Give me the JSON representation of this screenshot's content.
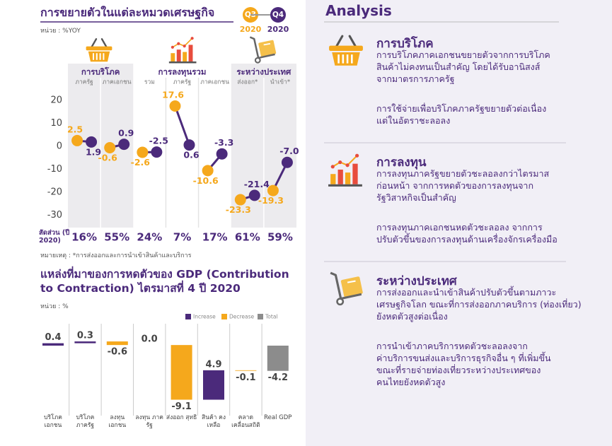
{
  "chart_data": [
    {
      "type": "dot",
      "title": "การขยายตัวในแต่ละหมวดเศรษฐกิจ",
      "unit": "หน่วย : %YOY",
      "groups": [
        {
          "name": "การบริโภค",
          "categories": [
            "ภาครัฐ",
            "ภาคเอกชน"
          ]
        },
        {
          "name": "การลงทุนรวม",
          "categories": [
            "รวม",
            "ภาครัฐ",
            "ภาคเอกชน"
          ]
        },
        {
          "name": "ระหว่างประเทศ",
          "categories": [
            "ส่งออก*",
            "นำเข้า*"
          ]
        }
      ],
      "series": [
        {
          "name": "Q3",
          "year": "2020",
          "color": "#f5a81c",
          "values": [
            2.5,
            -0.6,
            -2.6,
            17.6,
            -10.6,
            -23.3,
            -19.3
          ]
        },
        {
          "name": "Q4",
          "year": "2020",
          "color": "#4b2a7b",
          "values": [
            1.9,
            0.9,
            -2.5,
            0.6,
            -3.3,
            -21.4,
            -7.0
          ],
          "value_labels": [
            "1.9",
            "0.9",
            "-2.5",
            "0.6",
            "-3.3",
            "-21.4",
            "-7.0"
          ]
        }
      ],
      "ylim": [
        -33,
        25
      ],
      "yticks": [
        20,
        10,
        0,
        -10,
        -20,
        -30
      ],
      "share": {
        "label": "สัดส่วน (ปี 2020)",
        "values": [
          16,
          55,
          24,
          7,
          17,
          61,
          59
        ],
        "value_labels": [
          "16%",
          "55%",
          "24%",
          "7%",
          "17%",
          "61%",
          "59%"
        ]
      },
      "note": "หมายเหตุ : *การส่งออกและการนำเข้าสินค้าและบริการ"
    },
    {
      "type": "waterfall",
      "title": "แหล่งที่มาของการหดตัวของ GDP (Contribution to Contraction) ไตรมาสที่ 4 ปี 2020",
      "unit": "หน่วย : %",
      "legend": [
        {
          "name": "Increase",
          "color": "#4b2a7b"
        },
        {
          "name": "Decrease",
          "color": "#f5a81c"
        },
        {
          "name": "Total",
          "color": "#8c8c8c"
        }
      ],
      "categories": [
        "บริโภค เอกชน",
        "บริโภค ภาครัฐ",
        "ลงทุน เอกชน",
        "ลงทุน ภาครัฐ",
        "ส่งออก สุทธิ",
        "สินค้า คงเหลือ",
        "คลาด เคลื่อนสถิติ",
        "Real GDP"
      ],
      "kinds": [
        "Increase",
        "Increase",
        "Decrease",
        "Increase",
        "Decrease",
        "Increase",
        "Decrease",
        "Total"
      ],
      "values": [
        0.4,
        0.3,
        -0.6,
        0.0,
        -9.1,
        4.9,
        -0.1,
        -4.2
      ],
      "value_labels": [
        "0.4",
        "0.3",
        "-0.6",
        "0.0",
        "-9.1",
        "4.9",
        "-0.1",
        "-4.2"
      ]
    }
  ],
  "analysis": {
    "title": "Analysis",
    "sections": [
      {
        "heading": "การบริโภค",
        "paragraphs": [
          [
            "การบริโภคภาคเอกชนขยายตัวจากการบริโภค",
            "สินค้าไม่คงทนเป็นสำคัญ โดยได้รับอานิสงส์",
            "จากมาตรการภาครัฐ"
          ],
          [
            "การใช้จ่ายเพื่อบริโภคภาครัฐขยายตัวต่อเนื่อง",
            "แต่ในอัตราชะลอลง"
          ]
        ]
      },
      {
        "heading": "การลงทุน",
        "paragraphs": [
          [
            "การลงทุนภาครัฐขยายตัวชะลอลงกว่าไตรมาส",
            "ก่อนหน้า จากการหดตัวของการลงทุนจาก",
            "รัฐวิสาหกิจเป็นสำคัญ"
          ],
          [
            "การลงทุนภาคเอกชนหดตัวชะลอลง จากการ",
            "ปรับตัวขึ้นของการลงทุนด้านเครื่องจักรเครื่องมือ"
          ]
        ]
      },
      {
        "heading": "ระหว่างประเทศ",
        "paragraphs": [
          [
            "การส่งออกและนำเข้าสินค้าปรับตัวขึ้นตามภาวะ",
            "เศรษฐกิจโลก ขณะที่การส่งออกภาคบริการ (ท่องเที่ยว)",
            "ยังหดตัวสูงต่อเนื่อง"
          ],
          [
            "การนำเข้าภาคบริการหดตัวชะลอลงจาก",
            "ค่าบริการขนส่งและบริการธุรกิจอื่น ๆ ที่เพิ่มขึ้น",
            "ขณะที่รายจ่ายท่องเที่ยวระหว่างประเทศของ",
            "คนไทยยังหดตัวสูง"
          ]
        ]
      }
    ]
  }
}
